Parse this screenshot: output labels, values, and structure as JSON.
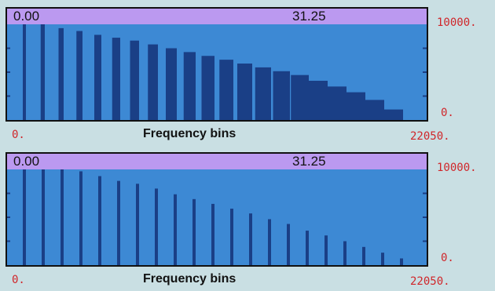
{
  "panels": [
    {
      "header_left": "0.00",
      "header_mid": "31.25",
      "y_max_label": "10000.",
      "y_min_label": "0.",
      "x_min_label": "0.",
      "x_max_label": "22050.",
      "x_label": "Frequency bins",
      "style": "wide"
    },
    {
      "header_left": "0.00",
      "header_mid": "31.25",
      "y_max_label": "10000.",
      "y_min_label": "0.",
      "x_min_label": "0.",
      "x_max_label": "22050.",
      "x_label": "Frequency bins",
      "style": "thin"
    }
  ],
  "chart_data": [
    {
      "type": "bar",
      "xlabel": "Frequency bins",
      "xlim": [
        0,
        22050
      ],
      "ylim": [
        0,
        10000
      ],
      "values": [
        10000,
        10000,
        9600,
        9300,
        8900,
        8600,
        8300,
        7900,
        7500,
        7100,
        6700,
        6300,
        5900,
        5500,
        5100,
        4700,
        4100,
        3500,
        2900,
        2100,
        1100
      ],
      "bar_color": "#1a3f86",
      "plot_bg": "#3d89d4"
    },
    {
      "type": "bar",
      "xlabel": "Frequency bins",
      "xlim": [
        0,
        22050
      ],
      "ylim": [
        0,
        10000
      ],
      "values": [
        10000,
        10000,
        10000,
        9800,
        9300,
        8800,
        8500,
        8000,
        7400,
        6900,
        6400,
        5900,
        5400,
        4800,
        4300,
        3600,
        3100,
        2500,
        1900,
        1300,
        700
      ],
      "bar_color": "#1a3f86",
      "plot_bg": "#3d89d4"
    }
  ]
}
